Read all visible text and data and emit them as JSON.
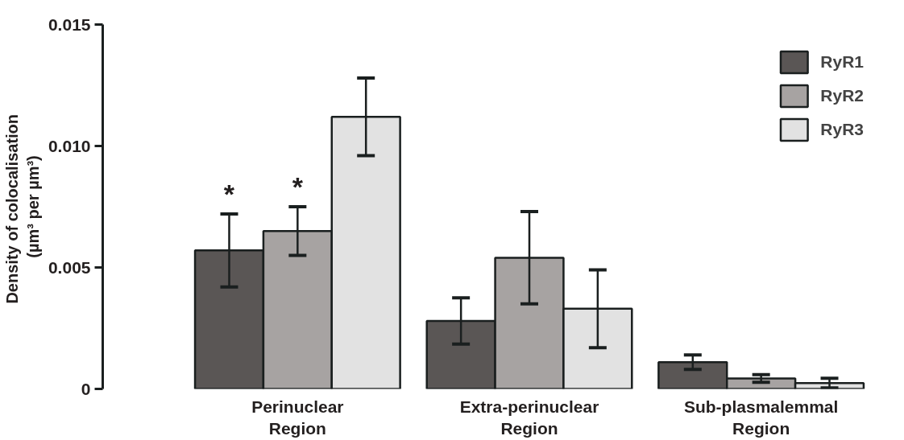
{
  "chart_data": {
    "type": "bar",
    "ylabel": "Density of  colocalisation\n(µm³ per µm³)",
    "categories": [
      "Perinuclear\nRegion",
      "Extra-perinuclear\nRegion",
      "Sub-plasmalemmal\nRegion"
    ],
    "series": [
      {
        "name": "RyR1",
        "color": "#5a5655",
        "values": [
          0.0057,
          0.0028,
          0.0011
        ],
        "errors": [
          0.0015,
          0.00095,
          0.0003
        ]
      },
      {
        "name": "RyR2",
        "color": "#a7a3a2",
        "values": [
          0.0065,
          0.0054,
          0.00043
        ],
        "errors": [
          0.001,
          0.0019,
          0.00016
        ]
      },
      {
        "name": "RyR3",
        "color": "#e2e2e2",
        "values": [
          0.0112,
          0.0033,
          0.00024
        ],
        "errors": [
          0.0016,
          0.0016,
          0.0002
        ]
      }
    ],
    "annotations": [
      "*",
      "*"
    ],
    "ylim": [
      0,
      0.015
    ],
    "yticks": [
      {
        "value": 0,
        "label": "0"
      },
      {
        "value": 0.005,
        "label": "0.005"
      },
      {
        "value": 0.01,
        "label": "0.010"
      },
      {
        "value": 0.015,
        "label": "0.015"
      }
    ],
    "grid": false,
    "legend": "top right"
  }
}
